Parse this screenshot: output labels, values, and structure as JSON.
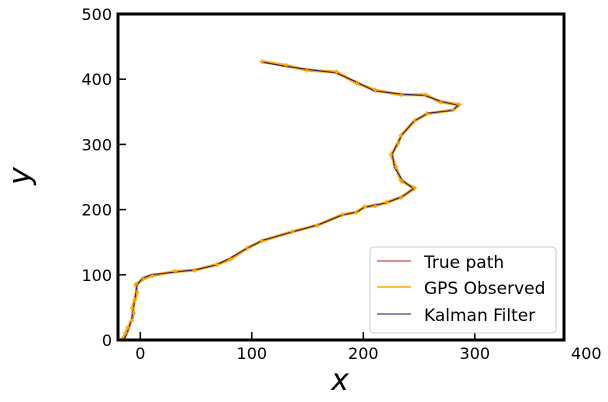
{
  "chart_data": {
    "type": "line",
    "xlabel": "x",
    "ylabel": "y",
    "xlim": [
      -20,
      380
    ],
    "ylim": [
      0,
      500
    ],
    "xticks": [
      0,
      100,
      200,
      300,
      400
    ],
    "yticks": [
      0,
      100,
      200,
      300,
      400,
      500
    ],
    "grid": false,
    "legend_position": "lower-right",
    "series": [
      {
        "name": "True path",
        "color": "#b22222",
        "points": [
          [
            -15,
            0
          ],
          [
            -12,
            10
          ],
          [
            -10,
            20
          ],
          [
            -8,
            30
          ],
          [
            -7,
            40
          ],
          [
            -6,
            50
          ],
          [
            -5,
            62
          ],
          [
            -4,
            72
          ],
          [
            -3,
            84
          ],
          [
            2,
            95
          ],
          [
            10,
            100
          ],
          [
            30,
            104
          ],
          [
            50,
            108
          ],
          [
            68,
            115
          ],
          [
            80,
            125
          ],
          [
            95,
            140
          ],
          [
            110,
            153
          ],
          [
            135,
            165
          ],
          [
            160,
            177
          ],
          [
            180,
            191
          ],
          [
            195,
            197
          ],
          [
            200,
            203
          ],
          [
            210,
            207
          ],
          [
            220,
            210
          ],
          [
            235,
            220
          ],
          [
            245,
            232
          ],
          [
            235,
            245
          ],
          [
            228,
            265
          ],
          [
            226,
            285
          ],
          [
            230,
            300
          ],
          [
            235,
            315
          ],
          [
            245,
            335
          ],
          [
            258,
            348
          ],
          [
            280,
            352
          ],
          [
            285,
            360
          ],
          [
            270,
            366
          ],
          [
            255,
            375
          ],
          [
            235,
            377
          ],
          [
            210,
            382
          ],
          [
            195,
            395
          ],
          [
            175,
            410
          ],
          [
            150,
            415
          ],
          [
            130,
            420
          ],
          [
            110,
            426
          ]
        ]
      },
      {
        "name": "GPS Observed",
        "color": "#ffa500",
        "points": [
          [
            -16,
            2
          ],
          [
            -13,
            11
          ],
          [
            -11,
            19
          ],
          [
            -8,
            29
          ],
          [
            -6,
            41
          ],
          [
            -7,
            49
          ],
          [
            -5,
            61
          ],
          [
            -3,
            73
          ],
          [
            -4,
            85
          ],
          [
            3,
            94
          ],
          [
            11,
            99
          ],
          [
            31,
            105
          ],
          [
            49,
            107
          ],
          [
            69,
            116
          ],
          [
            81,
            124
          ],
          [
            96,
            141
          ],
          [
            109,
            152
          ],
          [
            136,
            166
          ],
          [
            159,
            176
          ],
          [
            181,
            192
          ],
          [
            194,
            196
          ],
          [
            201,
            204
          ],
          [
            211,
            206
          ],
          [
            221,
            211
          ],
          [
            234,
            219
          ],
          [
            246,
            233
          ],
          [
            234,
            244
          ],
          [
            229,
            266
          ],
          [
            225,
            284
          ],
          [
            231,
            301
          ],
          [
            234,
            314
          ],
          [
            246,
            336
          ],
          [
            257,
            347
          ],
          [
            281,
            353
          ],
          [
            286,
            361
          ],
          [
            269,
            365
          ],
          [
            256,
            376
          ],
          [
            234,
            376
          ],
          [
            211,
            383
          ],
          [
            194,
            394
          ],
          [
            176,
            411
          ],
          [
            149,
            414
          ],
          [
            131,
            421
          ],
          [
            109,
            427
          ]
        ]
      },
      {
        "name": "Kalman Filter",
        "color": "#1a1a6e",
        "points": [
          [
            -15,
            0
          ],
          [
            -12,
            10
          ],
          [
            -10,
            20
          ],
          [
            -8,
            30
          ],
          [
            -7,
            40
          ],
          [
            -6,
            50
          ],
          [
            -5,
            62
          ],
          [
            -4,
            72
          ],
          [
            -3,
            84
          ],
          [
            2,
            95
          ],
          [
            10,
            100
          ],
          [
            30,
            104
          ],
          [
            50,
            108
          ],
          [
            68,
            115
          ],
          [
            80,
            125
          ],
          [
            95,
            140
          ],
          [
            110,
            153
          ],
          [
            135,
            165
          ],
          [
            160,
            177
          ],
          [
            180,
            191
          ],
          [
            195,
            197
          ],
          [
            200,
            203
          ],
          [
            210,
            207
          ],
          [
            220,
            210
          ],
          [
            235,
            220
          ],
          [
            245,
            232
          ],
          [
            235,
            245
          ],
          [
            228,
            265
          ],
          [
            226,
            285
          ],
          [
            230,
            300
          ],
          [
            235,
            315
          ],
          [
            245,
            335
          ],
          [
            258,
            348
          ],
          [
            280,
            352
          ],
          [
            285,
            360
          ],
          [
            270,
            366
          ],
          [
            255,
            375
          ],
          [
            235,
            377
          ],
          [
            210,
            382
          ],
          [
            195,
            395
          ],
          [
            175,
            410
          ],
          [
            150,
            415
          ],
          [
            130,
            420
          ],
          [
            110,
            426
          ]
        ]
      }
    ]
  }
}
